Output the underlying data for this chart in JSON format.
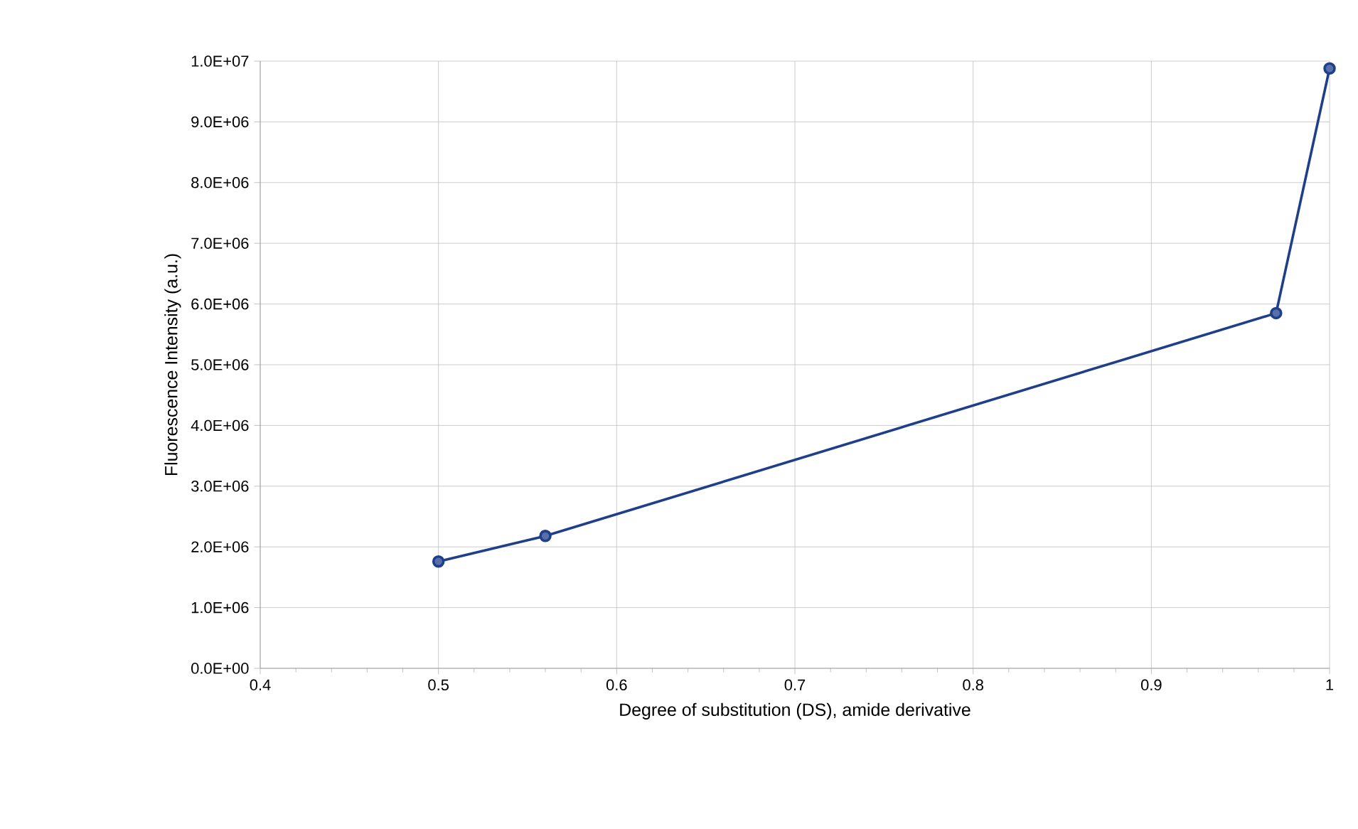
{
  "chart_data": {
    "type": "line",
    "xlabel": "Degree of substitution (DS), amide derivative",
    "ylabel": "Fluorescence Intensity (a.u.)",
    "x": [
      0.5,
      0.56,
      0.97,
      1.0
    ],
    "series": [
      {
        "color": "#203f8a",
        "values": [
          1760000,
          2180000,
          5850000,
          9880000
        ]
      }
    ],
    "xlim": [
      0.4,
      1.0
    ],
    "xticks": [
      0.4,
      0.5,
      0.6,
      0.7,
      0.8,
      0.9,
      1
    ],
    "ylim": [
      0,
      10000000
    ],
    "yticks": [
      {
        "value": 0,
        "label": "0.0E+00"
      },
      {
        "value": 1000000,
        "label": "1.0E+06"
      },
      {
        "value": 2000000,
        "label": "2.0E+06"
      },
      {
        "value": 3000000,
        "label": "3.0E+06"
      },
      {
        "value": 4000000,
        "label": "4.0E+06"
      },
      {
        "value": 5000000,
        "label": "5.0E+06"
      },
      {
        "value": 6000000,
        "label": "6.0E+06"
      },
      {
        "value": 7000000,
        "label": "7.0E+06"
      },
      {
        "value": 8000000,
        "label": "8.0E+06"
      },
      {
        "value": 9000000,
        "label": "9.0E+06"
      },
      {
        "value": 10000000,
        "label": "1.0E+07"
      }
    ],
    "grid": true,
    "marker": "circle",
    "line_style": "solid"
  }
}
